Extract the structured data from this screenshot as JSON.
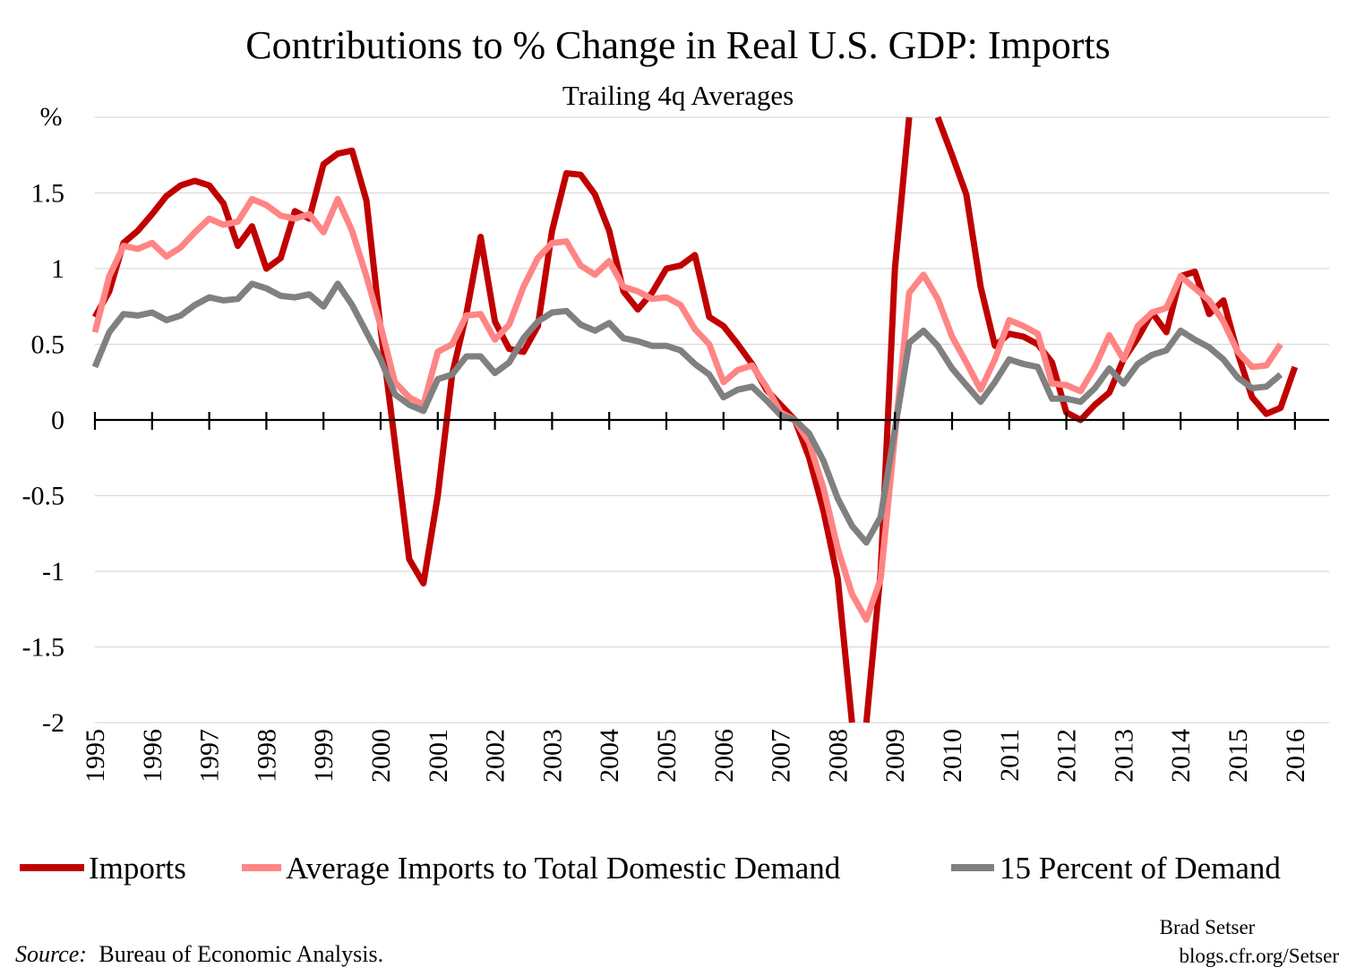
{
  "chart_data": {
    "type": "line",
    "title": "Contributions to % Change in Real U.S. GDP: Imports",
    "subtitle": "Trailing 4q Averages",
    "ylabel": "%",
    "ylim": [
      -2,
      2
    ],
    "xlim": [
      1995,
      2017
    ],
    "yticks": [
      {
        "value": 1.5,
        "label": "1.5"
      },
      {
        "value": 1,
        "label": "1"
      },
      {
        "value": 0.5,
        "label": "0.5"
      },
      {
        "value": 0,
        "label": "0"
      },
      {
        "value": -0.5,
        "label": "-0.5"
      },
      {
        "value": -1,
        "label": "-1"
      },
      {
        "value": -1.5,
        "label": "-1.5"
      },
      {
        "value": -2,
        "label": "-2"
      }
    ],
    "xticks": [
      "1995",
      "1996",
      "1997",
      "1998",
      "1999",
      "2000",
      "2001",
      "2002",
      "2003",
      "2004",
      "2005",
      "2006",
      "2007",
      "2008",
      "2009",
      "2010",
      "2011",
      "2012",
      "2013",
      "2014",
      "2015",
      "2016"
    ],
    "grid": true,
    "legend_position": "bottom",
    "series": [
      {
        "name": "Imports",
        "color": "#c00000",
        "points": [
          [
            1995.0,
            0.68
          ],
          [
            1995.25,
            0.85
          ],
          [
            1995.5,
            1.17
          ],
          [
            1995.75,
            1.25
          ],
          [
            1996.0,
            1.36
          ],
          [
            1996.25,
            1.48
          ],
          [
            1996.5,
            1.55
          ],
          [
            1996.75,
            1.58
          ],
          [
            1997.0,
            1.55
          ],
          [
            1997.25,
            1.43
          ],
          [
            1997.5,
            1.15
          ],
          [
            1997.75,
            1.28
          ],
          [
            1998.0,
            1.0
          ],
          [
            1998.25,
            1.07
          ],
          [
            1998.5,
            1.38
          ],
          [
            1998.75,
            1.33
          ],
          [
            1999.0,
            1.69
          ],
          [
            1999.25,
            1.76
          ],
          [
            1999.5,
            1.78
          ],
          [
            1999.75,
            1.45
          ],
          [
            2000.0,
            0.6
          ],
          [
            2000.25,
            -0.15
          ],
          [
            2000.5,
            -0.92
          ],
          [
            2000.75,
            -1.08
          ],
          [
            2001.0,
            -0.5
          ],
          [
            2001.25,
            0.3
          ],
          [
            2001.5,
            0.7
          ],
          [
            2001.75,
            1.21
          ],
          [
            2002.0,
            0.65
          ],
          [
            2002.25,
            0.47
          ],
          [
            2002.5,
            0.45
          ],
          [
            2002.75,
            0.62
          ],
          [
            2003.0,
            1.25
          ],
          [
            2003.25,
            1.63
          ],
          [
            2003.5,
            1.62
          ],
          [
            2003.75,
            1.49
          ],
          [
            2004.0,
            1.25
          ],
          [
            2004.25,
            0.85
          ],
          [
            2004.5,
            0.73
          ],
          [
            2004.75,
            0.84
          ],
          [
            2005.0,
            1.0
          ],
          [
            2005.25,
            1.02
          ],
          [
            2005.5,
            1.09
          ],
          [
            2005.75,
            0.68
          ],
          [
            2006.0,
            0.62
          ],
          [
            2006.25,
            0.5
          ],
          [
            2006.5,
            0.37
          ],
          [
            2006.75,
            0.2
          ],
          [
            2007.0,
            0.1
          ],
          [
            2007.25,
            0.0
          ],
          [
            2007.5,
            -0.25
          ],
          [
            2007.75,
            -0.6
          ],
          [
            2008.0,
            -1.05
          ],
          [
            2008.25,
            -2.0
          ]
        ],
        "points2": [
          [
            2008.5,
            -2.0
          ],
          [
            2008.75,
            -1.0
          ],
          [
            2009.0,
            1.0
          ],
          [
            2009.25,
            2.0
          ]
        ],
        "points3": [
          [
            2009.75,
            2.0
          ],
          [
            2010.0,
            1.75
          ],
          [
            2010.25,
            1.49
          ],
          [
            2010.5,
            0.88
          ],
          [
            2010.75,
            0.49
          ],
          [
            2011.0,
            0.57
          ],
          [
            2011.25,
            0.55
          ],
          [
            2011.5,
            0.5
          ],
          [
            2011.75,
            0.38
          ],
          [
            2012.0,
            0.05
          ],
          [
            2012.25,
            0.0
          ],
          [
            2012.5,
            0.1
          ],
          [
            2012.75,
            0.18
          ],
          [
            2013.0,
            0.4
          ],
          [
            2013.25,
            0.54
          ],
          [
            2013.5,
            0.71
          ],
          [
            2013.75,
            0.58
          ],
          [
            2014.0,
            0.95
          ],
          [
            2014.25,
            0.98
          ],
          [
            2014.5,
            0.7
          ],
          [
            2014.75,
            0.79
          ],
          [
            2015.0,
            0.44
          ],
          [
            2015.25,
            0.15
          ],
          [
            2015.5,
            0.04
          ],
          [
            2015.75,
            0.08
          ],
          [
            2016.0,
            0.35
          ]
        ]
      },
      {
        "name": "Average Imports to Total Domestic Demand",
        "color": "#ff8585",
        "points": [
          [
            1995.0,
            0.58
          ],
          [
            1995.25,
            0.95
          ],
          [
            1995.5,
            1.15
          ],
          [
            1995.75,
            1.13
          ],
          [
            1996.0,
            1.17
          ],
          [
            1996.25,
            1.08
          ],
          [
            1996.5,
            1.14
          ],
          [
            1996.75,
            1.24
          ],
          [
            1997.0,
            1.33
          ],
          [
            1997.25,
            1.29
          ],
          [
            1997.5,
            1.31
          ],
          [
            1997.75,
            1.46
          ],
          [
            1998.0,
            1.42
          ],
          [
            1998.25,
            1.35
          ],
          [
            1998.5,
            1.33
          ],
          [
            1998.75,
            1.36
          ],
          [
            1999.0,
            1.24
          ],
          [
            1999.25,
            1.46
          ],
          [
            1999.5,
            1.25
          ],
          [
            1999.75,
            0.95
          ],
          [
            2000.0,
            0.62
          ],
          [
            2000.25,
            0.25
          ],
          [
            2000.5,
            0.15
          ],
          [
            2000.75,
            0.1
          ],
          [
            2001.0,
            0.45
          ],
          [
            2001.25,
            0.5
          ],
          [
            2001.5,
            0.69
          ],
          [
            2001.75,
            0.7
          ],
          [
            2002.0,
            0.53
          ],
          [
            2002.25,
            0.63
          ],
          [
            2002.5,
            0.88
          ],
          [
            2002.75,
            1.07
          ],
          [
            2003.0,
            1.17
          ],
          [
            2003.25,
            1.18
          ],
          [
            2003.5,
            1.02
          ],
          [
            2003.75,
            0.96
          ],
          [
            2004.0,
            1.05
          ],
          [
            2004.25,
            0.88
          ],
          [
            2004.5,
            0.85
          ],
          [
            2004.75,
            0.8
          ],
          [
            2005.0,
            0.81
          ],
          [
            2005.25,
            0.76
          ],
          [
            2005.5,
            0.6
          ],
          [
            2005.75,
            0.5
          ],
          [
            2006.0,
            0.25
          ],
          [
            2006.25,
            0.33
          ],
          [
            2006.5,
            0.36
          ],
          [
            2006.75,
            0.22
          ],
          [
            2007.0,
            0.05
          ],
          [
            2007.25,
            0.0
          ],
          [
            2007.5,
            -0.15
          ],
          [
            2007.75,
            -0.45
          ],
          [
            2008.0,
            -0.85
          ],
          [
            2008.25,
            -1.15
          ],
          [
            2008.5,
            -1.32
          ],
          [
            2008.75,
            -1.05
          ],
          [
            2009.0,
            -0.1
          ],
          [
            2009.25,
            0.84
          ],
          [
            2009.5,
            0.96
          ],
          [
            2009.75,
            0.8
          ],
          [
            2010.0,
            0.55
          ],
          [
            2010.25,
            0.38
          ],
          [
            2010.5,
            0.2
          ],
          [
            2010.75,
            0.4
          ],
          [
            2011.0,
            0.66
          ],
          [
            2011.25,
            0.62
          ],
          [
            2011.5,
            0.57
          ],
          [
            2011.75,
            0.24
          ],
          [
            2012.0,
            0.23
          ],
          [
            2012.25,
            0.19
          ],
          [
            2012.5,
            0.35
          ],
          [
            2012.75,
            0.56
          ],
          [
            2013.0,
            0.4
          ],
          [
            2013.25,
            0.62
          ],
          [
            2013.5,
            0.71
          ],
          [
            2013.75,
            0.74
          ],
          [
            2014.0,
            0.95
          ],
          [
            2014.25,
            0.87
          ],
          [
            2014.5,
            0.79
          ],
          [
            2014.75,
            0.65
          ],
          [
            2015.0,
            0.45
          ],
          [
            2015.25,
            0.35
          ],
          [
            2015.5,
            0.36
          ],
          [
            2015.75,
            0.5
          ]
        ]
      },
      {
        "name": "15 Percent of Demand",
        "color": "#808080",
        "points": [
          [
            1995.0,
            0.35
          ],
          [
            1995.25,
            0.58
          ],
          [
            1995.5,
            0.7
          ],
          [
            1995.75,
            0.69
          ],
          [
            1996.0,
            0.71
          ],
          [
            1996.25,
            0.66
          ],
          [
            1996.5,
            0.69
          ],
          [
            1996.75,
            0.76
          ],
          [
            1997.0,
            0.81
          ],
          [
            1997.25,
            0.79
          ],
          [
            1997.5,
            0.8
          ],
          [
            1997.75,
            0.9
          ],
          [
            1998.0,
            0.87
          ],
          [
            1998.25,
            0.82
          ],
          [
            1998.5,
            0.81
          ],
          [
            1998.75,
            0.83
          ],
          [
            1999.0,
            0.75
          ],
          [
            1999.25,
            0.9
          ],
          [
            1999.5,
            0.76
          ],
          [
            1999.75,
            0.58
          ],
          [
            2000.0,
            0.4
          ],
          [
            2000.25,
            0.17
          ],
          [
            2000.5,
            0.1
          ],
          [
            2000.75,
            0.06
          ],
          [
            2001.0,
            0.27
          ],
          [
            2001.25,
            0.3
          ],
          [
            2001.5,
            0.42
          ],
          [
            2001.75,
            0.42
          ],
          [
            2002.0,
            0.31
          ],
          [
            2002.25,
            0.38
          ],
          [
            2002.5,
            0.54
          ],
          [
            2002.75,
            0.65
          ],
          [
            2003.0,
            0.71
          ],
          [
            2003.25,
            0.72
          ],
          [
            2003.5,
            0.63
          ],
          [
            2003.75,
            0.59
          ],
          [
            2004.0,
            0.64
          ],
          [
            2004.25,
            0.54
          ],
          [
            2004.5,
            0.52
          ],
          [
            2004.75,
            0.49
          ],
          [
            2005.0,
            0.49
          ],
          [
            2005.25,
            0.46
          ],
          [
            2005.5,
            0.37
          ],
          [
            2005.75,
            0.3
          ],
          [
            2006.0,
            0.15
          ],
          [
            2006.25,
            0.2
          ],
          [
            2006.5,
            0.22
          ],
          [
            2006.75,
            0.13
          ],
          [
            2007.0,
            0.03
          ],
          [
            2007.25,
            0.0
          ],
          [
            2007.5,
            -0.09
          ],
          [
            2007.75,
            -0.27
          ],
          [
            2008.0,
            -0.52
          ],
          [
            2008.25,
            -0.7
          ],
          [
            2008.5,
            -0.81
          ],
          [
            2008.75,
            -0.64
          ],
          [
            2009.0,
            -0.06
          ],
          [
            2009.25,
            0.51
          ],
          [
            2009.5,
            0.59
          ],
          [
            2009.75,
            0.49
          ],
          [
            2010.0,
            0.34
          ],
          [
            2010.25,
            0.23
          ],
          [
            2010.5,
            0.12
          ],
          [
            2010.75,
            0.25
          ],
          [
            2011.0,
            0.4
          ],
          [
            2011.25,
            0.37
          ],
          [
            2011.5,
            0.35
          ],
          [
            2011.75,
            0.14
          ],
          [
            2012.0,
            0.14
          ],
          [
            2012.25,
            0.12
          ],
          [
            2012.5,
            0.21
          ],
          [
            2012.75,
            0.34
          ],
          [
            2013.0,
            0.24
          ],
          [
            2013.25,
            0.37
          ],
          [
            2013.5,
            0.43
          ],
          [
            2013.75,
            0.46
          ],
          [
            2014.0,
            0.59
          ],
          [
            2014.25,
            0.53
          ],
          [
            2014.5,
            0.48
          ],
          [
            2014.75,
            0.4
          ],
          [
            2015.0,
            0.28
          ],
          [
            2015.25,
            0.21
          ],
          [
            2015.5,
            0.22
          ],
          [
            2015.75,
            0.3
          ]
        ]
      }
    ]
  },
  "credit": {
    "author": "Brad Setser",
    "site": "blogs.cfr.org/Setser"
  },
  "source": {
    "label": "Source:",
    "text": "Bureau of Economic Analysis."
  }
}
